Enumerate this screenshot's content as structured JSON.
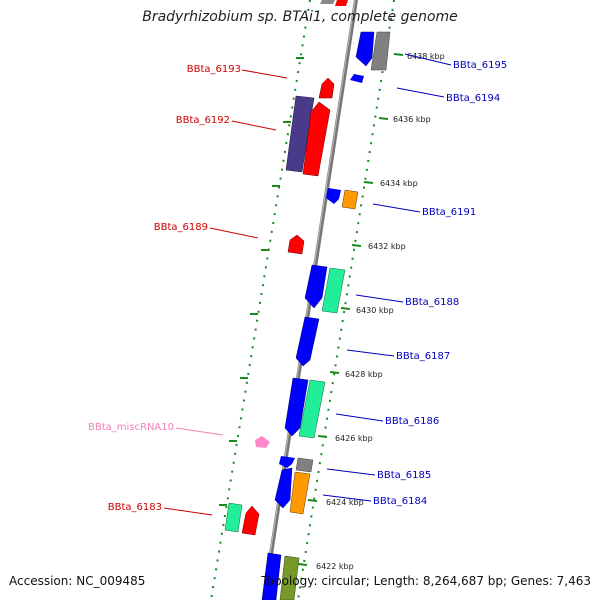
{
  "title": "Bradyrhizobium sp. BTAi1, complete genome",
  "footer": {
    "accession": "Accession: NC_009485",
    "topology": "Topology: circular; Length: 8,264,687 bp; Genes: 7,463"
  },
  "scale_labels": [
    "6438 kbp",
    "6436 kbp",
    "6434 kbp",
    "6432 kbp",
    "6430 kbp",
    "6428 kbp",
    "6426 kbp",
    "6424 kbp",
    "6422 kbp"
  ],
  "gene_labels_left": [
    {
      "text": "BBta_6193",
      "color": "#cc0000"
    },
    {
      "text": "BBta_6192",
      "color": "#cc0000"
    },
    {
      "text": "BBta_6189",
      "color": "#cc0000"
    },
    {
      "text": "BBta_miscRNA10",
      "color": "#f080b8"
    },
    {
      "text": "BBta_6183",
      "color": "#cc0000"
    }
  ],
  "gene_labels_right": [
    {
      "text": "BBta_6195",
      "color": "#0000bb"
    },
    {
      "text": "BBta_6194",
      "color": "#0000bb"
    },
    {
      "text": "BBta_6191",
      "color": "#0000bb"
    },
    {
      "text": "BBta_6188",
      "color": "#0000bb"
    },
    {
      "text": "BBta_6187",
      "color": "#0000bb"
    },
    {
      "text": "BBta_6186",
      "color": "#0000bb"
    },
    {
      "text": "BBta_6185",
      "color": "#0000bb"
    },
    {
      "text": "BBta_6184",
      "color": "#0000bb"
    }
  ],
  "colors": {
    "forward_cds": "#ff0000",
    "reverse_cds": "#0000ff",
    "dark_purple": "#4a3a8a",
    "teal": "#22ee99",
    "orange": "#ff9900",
    "gray": "#808080",
    "olive": "#77992a",
    "pink_rna": "#ff88cc",
    "tick_green": "#1a8a1a",
    "backbone": "#888888"
  }
}
